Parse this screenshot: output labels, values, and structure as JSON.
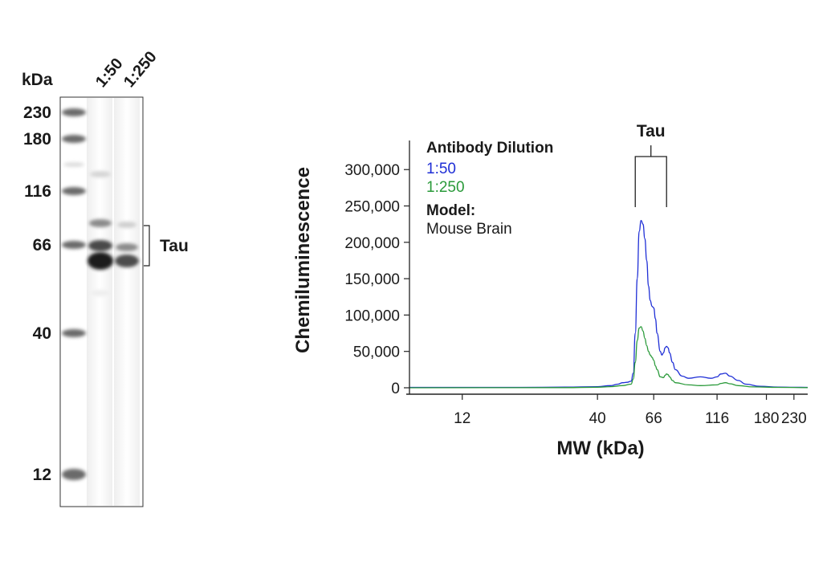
{
  "blot": {
    "unit_label": "kDa",
    "lanes": [
      "1:50",
      "1:250"
    ],
    "markers": [
      {
        "label": "230",
        "kda": 230
      },
      {
        "label": "180",
        "kda": 180
      },
      {
        "label": "116",
        "kda": 116
      },
      {
        "label": "66",
        "kda": 66
      },
      {
        "label": "40",
        "kda": 40
      },
      {
        "label": "12",
        "kda": 12
      }
    ],
    "target_label": "Tau"
  },
  "chart_data": {
    "type": "line",
    "xlabel": "MW (kDa)",
    "ylabel": "Chemiluminescence",
    "x_scale": "log",
    "xlim": [
      7.5,
      260
    ],
    "ylim": [
      0,
      340000
    ],
    "x_ticks": [
      {
        "label": "12",
        "value": 12
      },
      {
        "label": "40",
        "value": 40
      },
      {
        "label": "66",
        "value": 66
      },
      {
        "label": "116",
        "value": 116
      },
      {
        "label": "180",
        "value": 180
      },
      {
        "label": "230",
        "value": 230
      }
    ],
    "y_ticks": [
      {
        "label": "0",
        "value": 0
      },
      {
        "label": "50,000",
        "value": 50000
      },
      {
        "label": "100,000",
        "value": 100000
      },
      {
        "label": "150,000",
        "value": 150000
      },
      {
        "label": "200,000",
        "value": 200000
      },
      {
        "label": "250,000",
        "value": 250000
      },
      {
        "label": "300,000",
        "value": 300000
      }
    ],
    "annotation": {
      "label": "Tau",
      "x_range": [
        56,
        74
      ]
    },
    "legend": {
      "title": "Antibody Dilution",
      "model_title": "Model:",
      "model_value": "Mouse Brain",
      "placement": "top-left"
    },
    "series": [
      {
        "name": "1:50",
        "color": "#1f2fd6",
        "x": [
          7.5,
          20,
          30,
          40,
          45,
          48,
          50,
          52,
          54,
          55,
          56,
          57,
          58,
          59,
          60,
          61,
          62,
          63,
          64,
          65,
          66,
          67,
          68,
          70,
          71,
          72,
          73,
          74,
          75,
          76,
          78,
          80,
          85,
          90,
          100,
          110,
          116,
          120,
          125,
          130,
          140,
          150,
          170,
          200,
          230,
          260
        ],
        "y": [
          500,
          600,
          900,
          1500,
          3000,
          5000,
          7000,
          7500,
          9000,
          20000,
          75000,
          150000,
          215000,
          230000,
          225000,
          205000,
          175000,
          140000,
          120000,
          112000,
          110000,
          95000,
          75000,
          50000,
          45000,
          48000,
          55000,
          57000,
          55000,
          48000,
          35000,
          25000,
          16000,
          13000,
          15000,
          13000,
          15000,
          19000,
          20000,
          16000,
          10000,
          5000,
          2000,
          1000,
          700,
          500
        ]
      },
      {
        "name": "1:250",
        "color": "#2a9a3a",
        "x": [
          7.5,
          30,
          40,
          45,
          50,
          54,
          55,
          56,
          57,
          58,
          59,
          60,
          61,
          62,
          63,
          64,
          65,
          66,
          67,
          68,
          70,
          72,
          73,
          74,
          75,
          76,
          78,
          80,
          90,
          100,
          116,
          120,
          125,
          130,
          140,
          160,
          200,
          260
        ],
        "y": [
          0,
          200,
          800,
          1500,
          3000,
          5000,
          12000,
          35000,
          65000,
          82000,
          84000,
          78000,
          68000,
          58000,
          50000,
          45000,
          42000,
          38000,
          30000,
          25000,
          15000,
          14000,
          17000,
          19000,
          18000,
          15000,
          10000,
          7000,
          4000,
          3000,
          4000,
          6000,
          7000,
          5500,
          3000,
          1200,
          500,
          200
        ]
      }
    ]
  }
}
